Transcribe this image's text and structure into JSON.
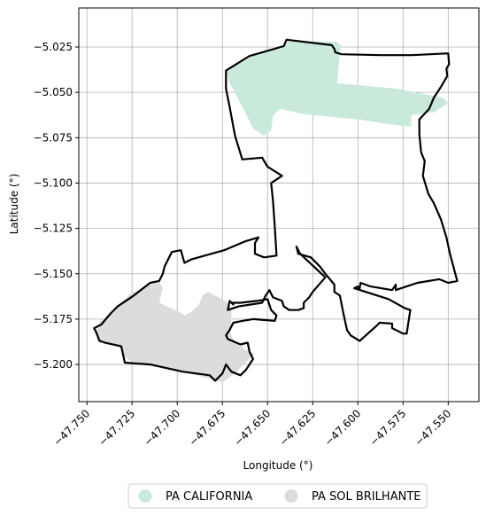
{
  "chart_data": {
    "type": "map",
    "xlabel": "Longitude (°)",
    "ylabel": "Latitude (°)",
    "xlim": [
      -47.7545,
      -47.533
    ],
    "ylim": [
      -5.2205,
      -5.0035
    ],
    "grid": true,
    "x_ticks": [
      {
        "value": -47.75,
        "label": "−47.750"
      },
      {
        "value": -47.725,
        "label": "−47.725"
      },
      {
        "value": -47.7,
        "label": "−47.700"
      },
      {
        "value": -47.675,
        "label": "−47.675"
      },
      {
        "value": -47.65,
        "label": "−47.650"
      },
      {
        "value": -47.625,
        "label": "−47.625"
      },
      {
        "value": -47.6,
        "label": "−47.600"
      },
      {
        "value": -47.575,
        "label": "−47.575"
      },
      {
        "value": -47.55,
        "label": "−47.550"
      }
    ],
    "y_ticks": [
      {
        "value": -5.025,
        "label": "−5.025"
      },
      {
        "value": -5.05,
        "label": "−5.050"
      },
      {
        "value": -5.075,
        "label": "−5.075"
      },
      {
        "value": -5.1,
        "label": "−5.100"
      },
      {
        "value": -5.125,
        "label": "−5.125"
      },
      {
        "value": -5.15,
        "label": "−5.150"
      },
      {
        "value": -5.175,
        "label": "−5.175"
      },
      {
        "value": -5.2,
        "label": "−5.200"
      }
    ],
    "legend_position": "bottom-center",
    "legend": [
      {
        "name": "PA CALIFORNIA",
        "color": "#c9eadb"
      },
      {
        "name": "PA SOL BRILHANTE",
        "color": "#dcdcdc"
      }
    ],
    "areas": [
      {
        "name": "PA CALIFORNIA",
        "color": "#c9eadb",
        "coords": [
          [
            -47.641,
            -5.0245
          ],
          [
            -47.64,
            -5.024
          ],
          [
            -47.6385,
            -5.022
          ],
          [
            -47.612,
            -5.022
          ],
          [
            -47.6095,
            -5.024
          ],
          [
            -47.6115,
            -5.045
          ],
          [
            -47.578,
            -5.048
          ],
          [
            -47.553,
            -5.053
          ],
          [
            -47.55,
            -5.056
          ],
          [
            -47.558,
            -5.061
          ],
          [
            -47.5705,
            -5.0625
          ],
          [
            -47.5705,
            -5.069
          ],
          [
            -47.579,
            -5.068
          ],
          [
            -47.6,
            -5.065
          ],
          [
            -47.63,
            -5.062
          ],
          [
            -47.643,
            -5.059
          ],
          [
            -47.647,
            -5.063
          ],
          [
            -47.648,
            -5.071
          ],
          [
            -47.652,
            -5.074
          ],
          [
            -47.658,
            -5.07
          ],
          [
            -47.664,
            -5.058
          ],
          [
            -47.671,
            -5.045
          ],
          [
            -47.673,
            -5.038
          ],
          [
            -47.656,
            -5.029
          ],
          [
            -47.641,
            -5.0245
          ]
        ]
      },
      {
        "name": "PA SOL BRILHANTE",
        "color": "#dcdcdc",
        "coords": [
          [
            -47.745,
            -5.182
          ],
          [
            -47.743,
            -5.1765
          ],
          [
            -47.737,
            -5.172
          ],
          [
            -47.733,
            -5.168
          ],
          [
            -47.726,
            -5.161
          ],
          [
            -47.71,
            -5.154
          ],
          [
            -47.708,
            -5.158
          ],
          [
            -47.71,
            -5.166
          ],
          [
            -47.699,
            -5.171
          ],
          [
            -47.696,
            -5.173
          ],
          [
            -47.692,
            -5.171
          ],
          [
            -47.688,
            -5.167
          ],
          [
            -47.686,
            -5.162
          ],
          [
            -47.683,
            -5.16
          ],
          [
            -47.677,
            -5.163
          ],
          [
            -47.672,
            -5.166
          ],
          [
            -47.67,
            -5.17
          ],
          [
            -47.67,
            -5.176
          ],
          [
            -47.671,
            -5.182
          ],
          [
            -47.668,
            -5.188
          ],
          [
            -47.662,
            -5.192
          ],
          [
            -47.657,
            -5.194
          ],
          [
            -47.668,
            -5.205
          ],
          [
            -47.675,
            -5.21
          ],
          [
            -47.678,
            -5.209
          ],
          [
            -47.697,
            -5.204
          ],
          [
            -47.715,
            -5.2
          ],
          [
            -47.726,
            -5.198
          ],
          [
            -47.729,
            -5.196
          ],
          [
            -47.731,
            -5.191
          ],
          [
            -47.738,
            -5.188
          ],
          [
            -47.744,
            -5.188
          ],
          [
            -47.745,
            -5.182
          ]
        ]
      }
    ],
    "boundary": {
      "name": "outline",
      "color": "#000000",
      "coords": [
        [
          -47.641,
          -5.0245
        ],
        [
          -47.6395,
          -5.021
        ],
        [
          -47.6145,
          -5.024
        ],
        [
          -47.613,
          -5.026
        ],
        [
          -47.6125,
          -5.028
        ],
        [
          -47.609,
          -5.029
        ],
        [
          -47.5875,
          -5.0295
        ],
        [
          -47.57,
          -5.0295
        ],
        [
          -47.55,
          -5.0285
        ],
        [
          -47.5495,
          -5.0345
        ],
        [
          -47.551,
          -5.037
        ],
        [
          -47.5505,
          -5.041
        ],
        [
          -47.554,
          -5.047
        ],
        [
          -47.558,
          -5.053
        ],
        [
          -47.5605,
          -5.059
        ],
        [
          -47.566,
          -5.065
        ],
        [
          -47.566,
          -5.073
        ],
        [
          -47.565,
          -5.083
        ],
        [
          -47.563,
          -5.088
        ],
        [
          -47.564,
          -5.096
        ],
        [
          -47.561,
          -5.106
        ],
        [
          -47.558,
          -5.111
        ],
        [
          -47.554,
          -5.12
        ],
        [
          -47.551,
          -5.13
        ],
        [
          -47.549,
          -5.139
        ],
        [
          -47.545,
          -5.154
        ],
        [
          -47.55,
          -5.155
        ],
        [
          -47.555,
          -5.153
        ],
        [
          -47.567,
          -5.155
        ],
        [
          -47.576,
          -5.158
        ],
        [
          -47.579,
          -5.159
        ],
        [
          -47.579,
          -5.156
        ],
        [
          -47.581,
          -5.159
        ],
        [
          -47.593,
          -5.157
        ],
        [
          -47.5985,
          -5.155
        ],
        [
          -47.599,
          -5.158
        ],
        [
          -47.6,
          -5.157
        ],
        [
          -47.602,
          -5.158
        ],
        [
          -47.583,
          -5.164
        ],
        [
          -47.574,
          -5.169
        ],
        [
          -47.571,
          -5.17
        ],
        [
          -47.573,
          -5.183
        ],
        [
          -47.575,
          -5.183
        ],
        [
          -47.581,
          -5.18
        ],
        [
          -47.581,
          -5.1775
        ],
        [
          -47.588,
          -5.177
        ],
        [
          -47.59,
          -5.179
        ],
        [
          -47.599,
          -5.187
        ],
        [
          -47.604,
          -5.184
        ],
        [
          -47.606,
          -5.181
        ],
        [
          -47.608,
          -5.172
        ],
        [
          -47.61,
          -5.162
        ],
        [
          -47.613,
          -5.16
        ],
        [
          -47.613,
          -5.156
        ],
        [
          -47.618,
          -5.15
        ],
        [
          -47.621,
          -5.146
        ],
        [
          -47.626,
          -5.141
        ],
        [
          -47.633,
          -5.139
        ],
        [
          -47.634,
          -5.135
        ],
        [
          -47.632,
          -5.139
        ],
        [
          -47.618,
          -5.152
        ],
        [
          -47.625,
          -5.16
        ],
        [
          -47.627,
          -5.163
        ],
        [
          -47.63,
          -5.166
        ],
        [
          -47.63,
          -5.169
        ],
        [
          -47.633,
          -5.17
        ],
        [
          -47.638,
          -5.17
        ],
        [
          -47.641,
          -5.168
        ],
        [
          -47.642,
          -5.165
        ],
        [
          -47.647,
          -5.163
        ],
        [
          -47.649,
          -5.159
        ],
        [
          -47.651,
          -5.162
        ],
        [
          -47.653,
          -5.166
        ],
        [
          -47.666,
          -5.168
        ],
        [
          -47.672,
          -5.17
        ],
        [
          -47.671,
          -5.165
        ],
        [
          -47.669,
          -5.167
        ],
        [
          -47.67,
          -5.166
        ],
        [
          -47.665,
          -5.166
        ],
        [
          -47.656,
          -5.165
        ],
        [
          -47.65,
          -5.164
        ],
        [
          -47.648,
          -5.17
        ],
        [
          -47.645,
          -5.173
        ],
        [
          -47.646,
          -5.176
        ],
        [
          -47.658,
          -5.175
        ],
        [
          -47.664,
          -5.176
        ],
        [
          -47.669,
          -5.177
        ],
        [
          -47.671,
          -5.181
        ],
        [
          -47.673,
          -5.184
        ],
        [
          -47.672,
          -5.186
        ],
        [
          -47.665,
          -5.189
        ],
        [
          -47.661,
          -5.188
        ],
        [
          -47.66,
          -5.193
        ],
        [
          -47.658,
          -5.197
        ],
        [
          -47.662,
          -5.203
        ],
        [
          -47.665,
          -5.206
        ],
        [
          -47.67,
          -5.204
        ],
        [
          -47.673,
          -5.2
        ],
        [
          -47.675,
          -5.205
        ],
        [
          -47.678,
          -5.208
        ],
        [
          -47.679,
          -5.209
        ],
        [
          -47.682,
          -5.206
        ],
        [
          -47.697,
          -5.204
        ],
        [
          -47.715,
          -5.2
        ],
        [
          -47.729,
          -5.199
        ],
        [
          -47.731,
          -5.19
        ],
        [
          -47.74,
          -5.188
        ],
        [
          -47.743,
          -5.187
        ],
        [
          -47.745,
          -5.182
        ],
        [
          -47.746,
          -5.18
        ],
        [
          -47.742,
          -5.178
        ],
        [
          -47.737,
          -5.172
        ],
        [
          -47.733,
          -5.168
        ],
        [
          -47.727,
          -5.164
        ],
        [
          -47.724,
          -5.162
        ],
        [
          -47.715,
          -5.155
        ],
        [
          -47.71,
          -5.154
        ],
        [
          -47.708,
          -5.15
        ],
        [
          -47.707,
          -5.146
        ],
        [
          -47.703,
          -5.138
        ],
        [
          -47.698,
          -5.137
        ],
        [
          -47.696,
          -5.144
        ],
        [
          -47.692,
          -5.142
        ],
        [
          -47.674,
          -5.137
        ],
        [
          -47.662,
          -5.132
        ],
        [
          -47.655,
          -5.13
        ],
        [
          -47.657,
          -5.133
        ],
        [
          -47.657,
          -5.139
        ],
        [
          -47.652,
          -5.141
        ],
        [
          -47.645,
          -5.14
        ],
        [
          -47.646,
          -5.124
        ],
        [
          -47.647,
          -5.11
        ],
        [
          -47.648,
          -5.1
        ],
        [
          -47.642,
          -5.096
        ],
        [
          -47.65,
          -5.091
        ],
        [
          -47.653,
          -5.086
        ],
        [
          -47.664,
          -5.087
        ],
        [
          -47.668,
          -5.074
        ],
        [
          -47.671,
          -5.058
        ],
        [
          -47.673,
          -5.048
        ],
        [
          -47.673,
          -5.038
        ],
        [
          -47.66,
          -5.03
        ],
        [
          -47.641,
          -5.0245
        ]
      ]
    }
  }
}
